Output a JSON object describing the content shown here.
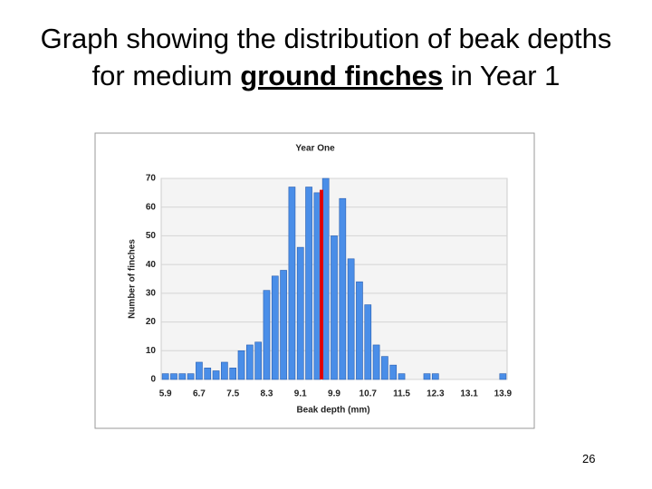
{
  "slide": {
    "title_parts": [
      "Graph showing the distribution of beak depths for medium ",
      "ground finches",
      " in Year 1"
    ],
    "page_number": "26"
  },
  "chart_data": {
    "type": "bar",
    "title": "Year One",
    "x_label": "Beak depth (mm)",
    "y_label": "Number of finches",
    "categories": [
      "5.9",
      null,
      null,
      null,
      "6.7",
      null,
      null,
      null,
      "7.5",
      null,
      null,
      null,
      "8.3",
      null,
      null,
      null,
      "9.1",
      null,
      null,
      null,
      "9.9",
      null,
      null,
      null,
      "10.7",
      null,
      null,
      null,
      "11.5",
      null,
      null,
      null,
      "12.3",
      null,
      null,
      null,
      "13.1",
      null,
      null,
      null,
      "13.9"
    ],
    "values": [
      2,
      2,
      2,
      2,
      6,
      4,
      3,
      6,
      4,
      10,
      12,
      13,
      31,
      36,
      38,
      67,
      46,
      67,
      65,
      70,
      50,
      63,
      42,
      34,
      26,
      12,
      8,
      5,
      2,
      0,
      0,
      2,
      2,
      0,
      0,
      0,
      0,
      0,
      0,
      0,
      2
    ],
    "color": "#4a8ee8",
    "ylim": [
      0,
      70
    ],
    "yticks": [
      0,
      10,
      20,
      30,
      40,
      50,
      60,
      70
    ],
    "grid": true,
    "mean_marker": {
      "x": 9.6,
      "top": 66,
      "color": "#e00000"
    }
  }
}
